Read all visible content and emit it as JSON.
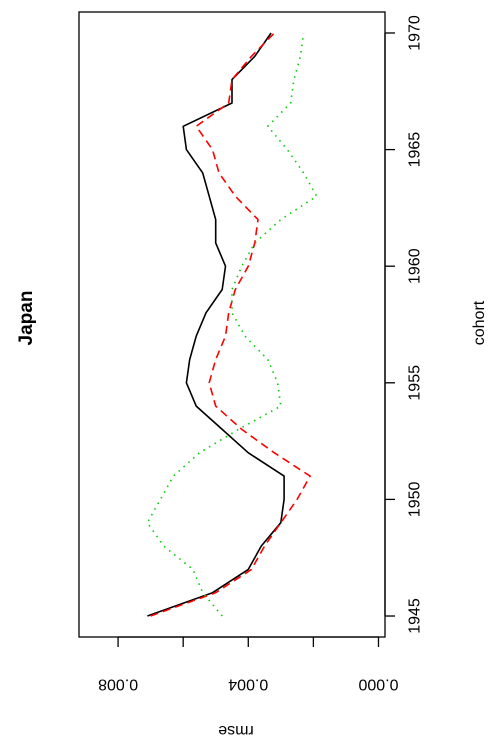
{
  "chart_data": {
    "type": "line",
    "orientation": "rotated 90 degrees clockwise (cohort axis vertical on right, rmse axis reversed at bottom)",
    "title": "Japan",
    "xlabel": "cohort",
    "ylabel": "rmse",
    "x": [
      1945,
      1946,
      1947,
      1948,
      1949,
      1950,
      1951,
      1952,
      1953,
      1954,
      1955,
      1956,
      1957,
      1958,
      1959,
      1960,
      1961,
      1962,
      1963,
      1964,
      1965,
      1966,
      1967,
      1968,
      1969,
      1970
    ],
    "xlim": [
      1944.1,
      1970.9
    ],
    "ylim": [
      -0.0002,
      0.0092
    ],
    "x_ticks": [
      1945,
      1950,
      1955,
      1960,
      1965,
      1970
    ],
    "y_ticks": [
      0.0,
      0.004,
      0.008
    ],
    "y_tick_labels": [
      "0.000",
      "0.004",
      "0.008"
    ],
    "grid": false,
    "series": [
      {
        "color": "#000000",
        "dash": "solid",
        "values": [
          0.0071,
          0.0051,
          0.004,
          0.0036,
          0.003,
          0.0029,
          0.0029,
          0.004,
          0.0048,
          0.0056,
          0.0059,
          0.0058,
          0.0056,
          0.0053,
          0.0048,
          0.0047,
          0.005,
          0.005,
          0.0052,
          0.0054,
          0.0059,
          0.006,
          0.0045,
          0.0045,
          0.0038,
          0.0033
        ]
      },
      {
        "color": "#ff0000",
        "dash": "dashed",
        "values": [
          0.007,
          0.005,
          0.0039,
          0.0035,
          0.003,
          0.0025,
          0.0021,
          0.0032,
          0.0042,
          0.005,
          0.0052,
          0.005,
          0.0047,
          0.0046,
          0.0044,
          0.004,
          0.0038,
          0.0037,
          0.0044,
          0.0049,
          0.0051,
          0.0056,
          0.0046,
          0.0045,
          0.0039,
          0.0032
        ]
      },
      {
        "color": "#00cd00",
        "dash": "dotted",
        "values": [
          0.0048,
          0.0054,
          0.0057,
          0.0066,
          0.0071,
          0.0067,
          0.0063,
          0.0055,
          0.0043,
          0.003,
          0.0031,
          0.0034,
          0.0041,
          0.0045,
          0.0045,
          0.0042,
          0.0038,
          0.003,
          0.0019,
          0.0023,
          0.0028,
          0.0034,
          0.0027,
          0.0026,
          0.0024,
          0.0023
        ]
      }
    ]
  }
}
